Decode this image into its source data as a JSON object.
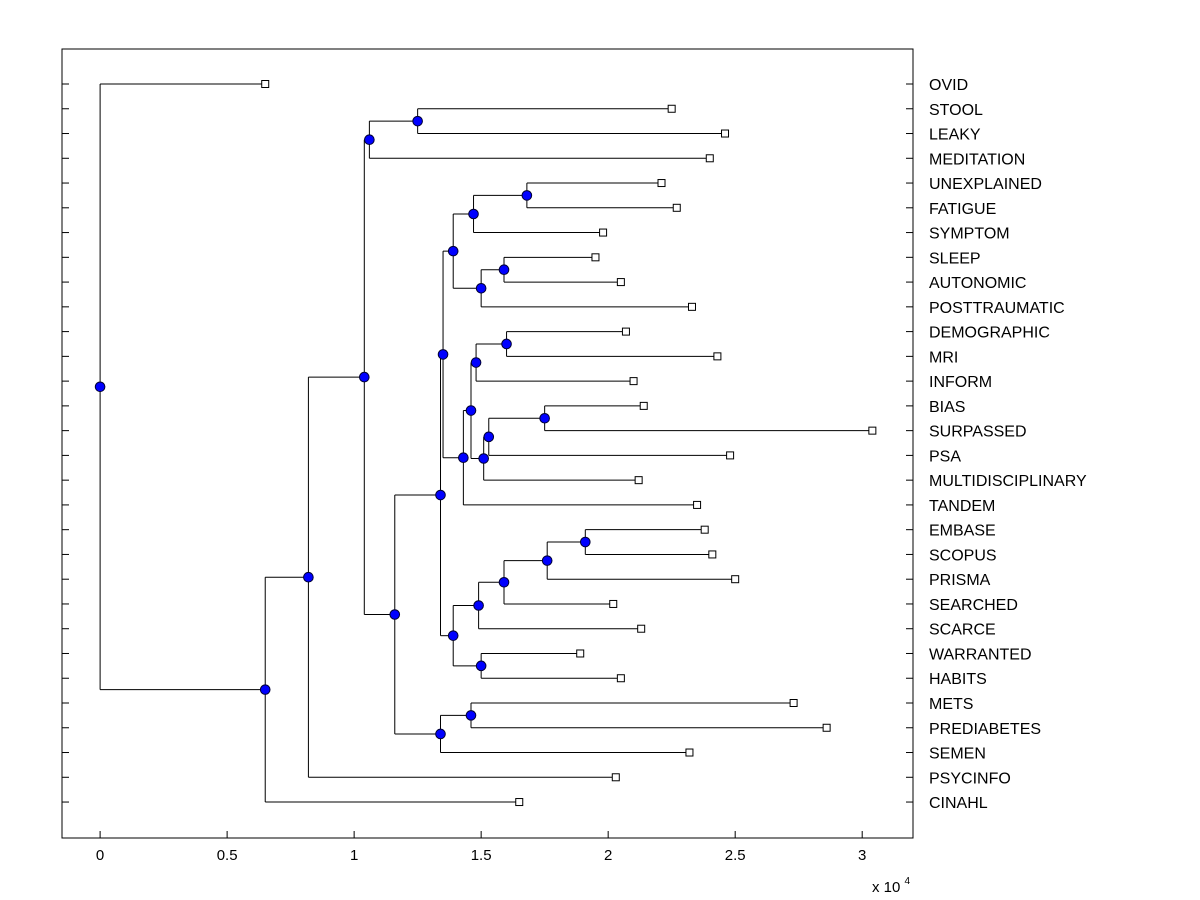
{
  "chart_data": {
    "type": "dendrogram",
    "title": "",
    "xlabel": "",
    "ylabel": "",
    "x_multiplier_label": "x 10",
    "x_multiplier_exponent": "4",
    "xlim": [
      -0.15,
      3.2
    ],
    "xticks": [
      0,
      0.5,
      1,
      1.5,
      2,
      2.5,
      3
    ],
    "xtick_labels": [
      "0",
      "0.5",
      "1",
      "1.5",
      "2",
      "2.5",
      "3"
    ],
    "grid": false,
    "colors": {
      "node_fill": "#0000ff",
      "line": "#000000",
      "leaf_fill": "#ffffff"
    },
    "leaves": [
      {
        "label": "OVID",
        "x": 0.65
      },
      {
        "label": "STOOL",
        "x": 2.25
      },
      {
        "label": "LEAKY",
        "x": 2.46
      },
      {
        "label": "MEDITATION",
        "x": 2.4
      },
      {
        "label": "UNEXPLAINED",
        "x": 2.21
      },
      {
        "label": "FATIGUE",
        "x": 2.27
      },
      {
        "label": "SYMPTOM",
        "x": 1.98
      },
      {
        "label": "SLEEP",
        "x": 1.95
      },
      {
        "label": "AUTONOMIC",
        "x": 2.05
      },
      {
        "label": "POSTTRAUMATIC",
        "x": 2.33
      },
      {
        "label": "DEMOGRAPHIC",
        "x": 2.07
      },
      {
        "label": "MRI",
        "x": 2.43
      },
      {
        "label": "INFORM",
        "x": 2.1
      },
      {
        "label": "BIAS",
        "x": 2.14
      },
      {
        "label": "SURPASSED",
        "x": 3.04
      },
      {
        "label": "PSA",
        "x": 2.48
      },
      {
        "label": "MULTIDISCIPLINARY",
        "x": 2.12
      },
      {
        "label": "TANDEM",
        "x": 2.35
      },
      {
        "label": "EMBASE",
        "x": 2.38
      },
      {
        "label": "SCOPUS",
        "x": 2.41
      },
      {
        "label": "PRISMA",
        "x": 2.5
      },
      {
        "label": "SEARCHED",
        "x": 2.02
      },
      {
        "label": "SCARCE",
        "x": 2.13
      },
      {
        "label": "WARRANTED",
        "x": 1.89
      },
      {
        "label": "HABITS",
        "x": 2.05
      },
      {
        "label": "METS",
        "x": 2.73
      },
      {
        "label": "PREDIABETES",
        "x": 2.86
      },
      {
        "label": "SEMEN",
        "x": 2.32
      },
      {
        "label": "PSYCINFO",
        "x": 2.03
      },
      {
        "label": "CINAHL",
        "x": 1.65
      }
    ],
    "nodes": [
      {
        "id": "n0",
        "x": 0.0,
        "children": [
          "L0",
          "n1"
        ]
      },
      {
        "id": "n1",
        "x": 0.65,
        "children": [
          "n2",
          "L29"
        ]
      },
      {
        "id": "n2",
        "x": 0.82,
        "children": [
          "n3",
          "L28"
        ]
      },
      {
        "id": "n3",
        "x": 1.04,
        "children": [
          "n4",
          "n5"
        ]
      },
      {
        "id": "n4",
        "x": 1.06,
        "children": [
          "n6",
          "L3"
        ]
      },
      {
        "id": "n6",
        "x": 1.25,
        "children": [
          "L1",
          "L2"
        ]
      },
      {
        "id": "n5",
        "x": 1.16,
        "children": [
          "n7",
          "n8"
        ]
      },
      {
        "id": "n7",
        "x": 1.34,
        "children": [
          "n9",
          "n10"
        ]
      },
      {
        "id": "n9",
        "x": 1.35,
        "children": [
          "n11",
          "n12"
        ]
      },
      {
        "id": "n11",
        "x": 1.39,
        "children": [
          "n13",
          "n14"
        ]
      },
      {
        "id": "n13",
        "x": 1.47,
        "children": [
          "n15",
          "L6"
        ]
      },
      {
        "id": "n15",
        "x": 1.68,
        "children": [
          "L4",
          "L5"
        ]
      },
      {
        "id": "n14",
        "x": 1.5,
        "children": [
          "n16",
          "L9"
        ]
      },
      {
        "id": "n16",
        "x": 1.59,
        "children": [
          "L7",
          "L8"
        ]
      },
      {
        "id": "n12",
        "x": 1.43,
        "children": [
          "n17",
          "L17"
        ]
      },
      {
        "id": "n17",
        "x": 1.46,
        "children": [
          "n18",
          "n19"
        ]
      },
      {
        "id": "n18",
        "x": 1.48,
        "children": [
          "n20",
          "L12"
        ]
      },
      {
        "id": "n20",
        "x": 1.6,
        "children": [
          "L10",
          "L11"
        ]
      },
      {
        "id": "n19",
        "x": 1.51,
        "children": [
          "n21",
          "L16"
        ]
      },
      {
        "id": "n21",
        "x": 1.53,
        "children": [
          "n22",
          "L15"
        ]
      },
      {
        "id": "n22",
        "x": 1.75,
        "children": [
          "L13",
          "L14"
        ]
      },
      {
        "id": "n10",
        "x": 1.39,
        "children": [
          "n23",
          "n24"
        ]
      },
      {
        "id": "n23",
        "x": 1.49,
        "children": [
          "n25",
          "L22"
        ]
      },
      {
        "id": "n25",
        "x": 1.59,
        "children": [
          "n26",
          "L21"
        ]
      },
      {
        "id": "n26",
        "x": 1.76,
        "children": [
          "n27",
          "L20"
        ]
      },
      {
        "id": "n27",
        "x": 1.91,
        "children": [
          "L18",
          "L19"
        ]
      },
      {
        "id": "n24",
        "x": 1.5,
        "children": [
          "L23",
          "L24"
        ]
      },
      {
        "id": "n8",
        "x": 1.34,
        "children": [
          "n28",
          "L27"
        ]
      },
      {
        "id": "n28",
        "x": 1.46,
        "children": [
          "L25",
          "L26"
        ]
      }
    ]
  }
}
